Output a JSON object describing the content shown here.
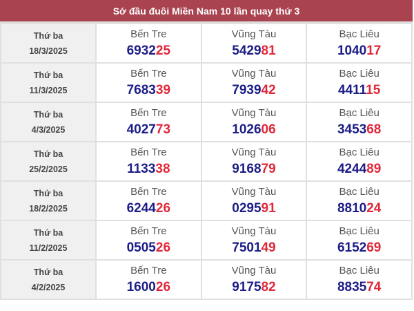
{
  "title": "Sớ đầu đuôi Miền Nam 10 lần quay thứ 3",
  "colors": {
    "header_bg": "#a9434f",
    "prefix": "#1c1c87",
    "suffix": "#e0283a"
  },
  "rows": [
    {
      "day": "Thứ ba",
      "date": "18/3/2025",
      "results": [
        {
          "province": "Bến Tre",
          "prefix": "6932",
          "suffix": "25"
        },
        {
          "province": "Vũng Tàu",
          "prefix": "5429",
          "suffix": "81"
        },
        {
          "province": "Bạc Liêu",
          "prefix": "1040",
          "suffix": "17"
        }
      ]
    },
    {
      "day": "Thứ ba",
      "date": "11/3/2025",
      "results": [
        {
          "province": "Bến Tre",
          "prefix": "7683",
          "suffix": "39"
        },
        {
          "province": "Vũng Tàu",
          "prefix": "7939",
          "suffix": "42"
        },
        {
          "province": "Bạc Liêu",
          "prefix": "4411",
          "suffix": "15"
        }
      ]
    },
    {
      "day": "Thứ ba",
      "date": "4/3/2025",
      "results": [
        {
          "province": "Bến Tre",
          "prefix": "4027",
          "suffix": "73"
        },
        {
          "province": "Vũng Tàu",
          "prefix": "1026",
          "suffix": "06"
        },
        {
          "province": "Bạc Liêu",
          "prefix": "3453",
          "suffix": "68"
        }
      ]
    },
    {
      "day": "Thứ ba",
      "date": "25/2/2025",
      "results": [
        {
          "province": "Bến Tre",
          "prefix": "1133",
          "suffix": "38"
        },
        {
          "province": "Vũng Tàu",
          "prefix": "9168",
          "suffix": "79"
        },
        {
          "province": "Bạc Liêu",
          "prefix": "4244",
          "suffix": "89"
        }
      ]
    },
    {
      "day": "Thứ ba",
      "date": "18/2/2025",
      "results": [
        {
          "province": "Bến Tre",
          "prefix": "6244",
          "suffix": "26"
        },
        {
          "province": "Vũng Tàu",
          "prefix": "0295",
          "suffix": "91"
        },
        {
          "province": "Bạc Liêu",
          "prefix": "8810",
          "suffix": "24"
        }
      ]
    },
    {
      "day": "Thứ ba",
      "date": "11/2/2025",
      "results": [
        {
          "province": "Bến Tre",
          "prefix": "0505",
          "suffix": "26"
        },
        {
          "province": "Vũng Tàu",
          "prefix": "7501",
          "suffix": "49"
        },
        {
          "province": "Bạc Liêu",
          "prefix": "6152",
          "suffix": "69"
        }
      ]
    },
    {
      "day": "Thứ ba",
      "date": "4/2/2025",
      "results": [
        {
          "province": "Bến Tre",
          "prefix": "1600",
          "suffix": "26"
        },
        {
          "province": "Vũng Tàu",
          "prefix": "9175",
          "suffix": "82"
        },
        {
          "province": "Bạc Liêu",
          "prefix": "8835",
          "suffix": "74"
        }
      ]
    }
  ]
}
